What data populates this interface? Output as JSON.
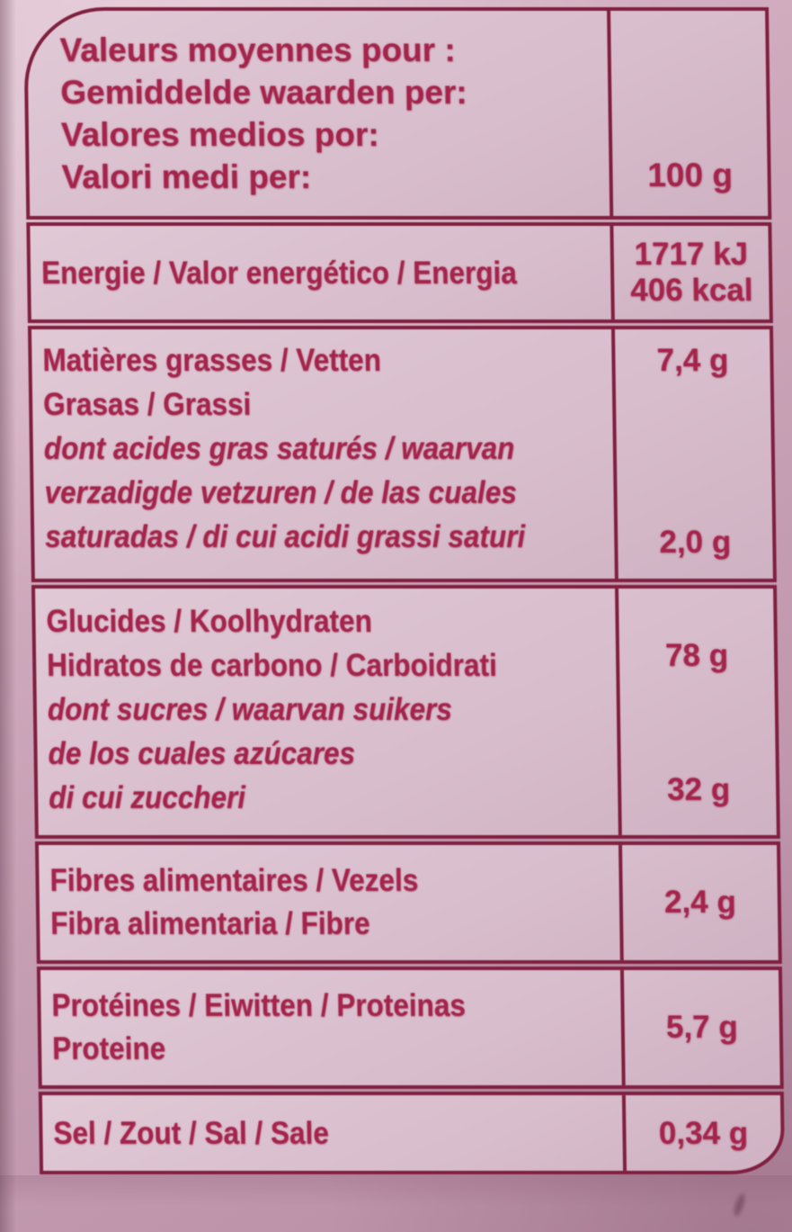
{
  "colors": {
    "ink": "#a5244c",
    "line": "#801f3f",
    "panel": "#d8bdcc",
    "page_bg": "#c59db2"
  },
  "table": {
    "header": {
      "title_lines": [
        "Valeurs moyennes pour :",
        "Gemiddelde waarden per:",
        "Valores medios por:",
        "Valori medi per:"
      ],
      "amount": "100 g"
    },
    "energy": {
      "label": "Energie / Valor energético / Energia",
      "value_kj": "1717 kJ",
      "value_kcal": "406 kcal"
    },
    "fat": {
      "label_lines": [
        "Matières grasses / Vetten",
        "Grasas / Grassi"
      ],
      "saturated_label_lines": [
        "dont acides gras saturés / waarvan",
        "verzadigde vetzuren / de las cuales",
        "saturadas / di cui acidi grassi saturi"
      ],
      "value": "7,4 g",
      "saturated_value": "2,0 g"
    },
    "carbohydrates": {
      "label_lines": [
        "Glucides / Koolhydraten",
        "Hidratos de carbono / Carboidrati"
      ],
      "sugars_label_lines": [
        "dont sucres / waarvan suikers",
        "de los cuales azúcares",
        "di cui zuccheri"
      ],
      "value": "78 g",
      "sugars_value": "32 g"
    },
    "fiber": {
      "label_lines": [
        "Fibres alimentaires / Vezels",
        "Fibra alimentaria / Fibre"
      ],
      "value": "2,4 g"
    },
    "protein": {
      "label_lines": [
        "Protéines / Eiwitten / Proteinas",
        "Proteine"
      ],
      "value": "5,7 g"
    },
    "salt": {
      "label": "Sel / Zout / Sal / Sale",
      "value": "0,34 g"
    }
  }
}
